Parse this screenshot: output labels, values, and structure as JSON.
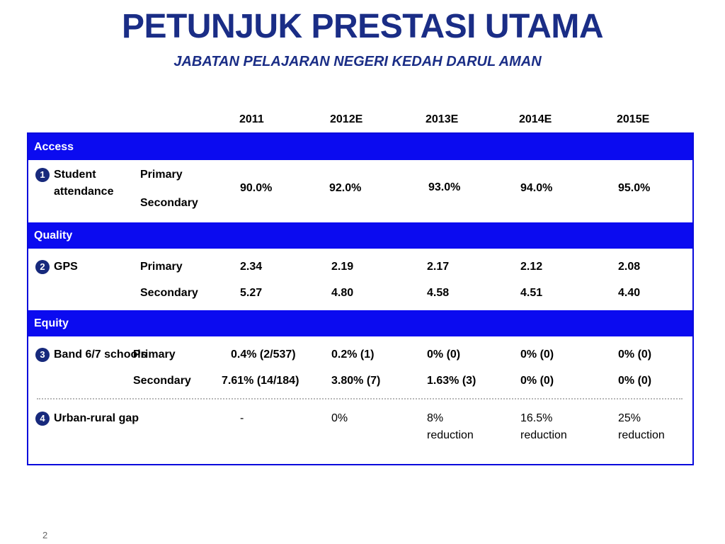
{
  "title": "PETUNJUK PRESTASI UTAMA",
  "subtitle": "JABATAN PELAJARAN NEGERI KEDAH DARUL AMAN",
  "years": [
    "2011",
    "2012E",
    "2013E",
    "2014E",
    "2015E"
  ],
  "sections": {
    "access": "Access",
    "quality": "Quality",
    "equity": "Equity"
  },
  "rows": {
    "attendance": {
      "number": "1",
      "label_line1": "Student",
      "label_line2": "attendance",
      "sub1": "Primary",
      "sub2": "Secondary",
      "values": [
        "90.0%",
        "92.0%",
        "93.0%",
        "94.0%",
        "95.0%"
      ]
    },
    "gps": {
      "number": "2",
      "label": "GPS",
      "primary_label": "Primary",
      "primary": [
        "2.34",
        "2.19",
        "2.17",
        "2.12",
        "2.08"
      ],
      "secondary_label": "Secondary",
      "secondary": [
        "5.27",
        "4.80",
        "4.58",
        "4.51",
        "4.40"
      ]
    },
    "band": {
      "number": "3",
      "label": "Band 6/7 schools",
      "primary_label": "Primary",
      "primary": [
        "0.4% (2/537)",
        "0.2% (1)",
        "0% (0)",
        "0% (0)",
        "0% (0)"
      ],
      "secondary_label": "Secondary",
      "secondary": [
        "7.61% (14/184)",
        "3.80% (7)",
        "1.63% (3)",
        "0% (0)",
        "0% (0)"
      ]
    },
    "gap": {
      "number": "4",
      "label": "Urban-rural gap",
      "values": [
        "-",
        "0%",
        "8%",
        "16.5%",
        "25%"
      ],
      "suffix": "reduction"
    }
  },
  "page_number": "2",
  "colors": {
    "title": "#1a2d86",
    "band": "#0b0bf0",
    "border": "#0a0adc",
    "badge": "#17297c"
  }
}
